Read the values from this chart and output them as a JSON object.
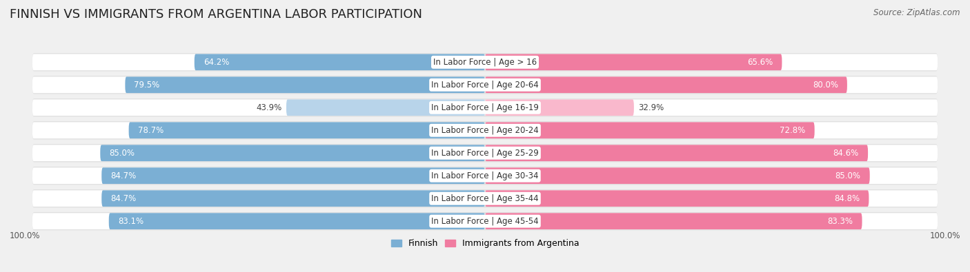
{
  "title": "FINNISH VS IMMIGRANTS FROM ARGENTINA LABOR PARTICIPATION",
  "source": "Source: ZipAtlas.com",
  "categories": [
    "In Labor Force | Age > 16",
    "In Labor Force | Age 20-64",
    "In Labor Force | Age 16-19",
    "In Labor Force | Age 20-24",
    "In Labor Force | Age 25-29",
    "In Labor Force | Age 30-34",
    "In Labor Force | Age 35-44",
    "In Labor Force | Age 45-54"
  ],
  "finnish_values": [
    64.2,
    79.5,
    43.9,
    78.7,
    85.0,
    84.7,
    84.7,
    83.1
  ],
  "immigrant_values": [
    65.6,
    80.0,
    32.9,
    72.8,
    84.6,
    85.0,
    84.8,
    83.3
  ],
  "finnish_color": "#7bafd4",
  "immigrant_color": "#f07ca0",
  "finnish_light_color": "#b8d4ea",
  "immigrant_light_color": "#f9b8cc",
  "bg_color": "#f0f0f0",
  "row_bg_color": "#e0e0e0",
  "bar_bg_color": "#ffffff",
  "title_fontsize": 13,
  "label_fontsize": 8.5,
  "value_fontsize": 8.5,
  "legend_fontsize": 9,
  "max_value": 100.0,
  "bar_height": 0.72,
  "threshold_light": 55
}
